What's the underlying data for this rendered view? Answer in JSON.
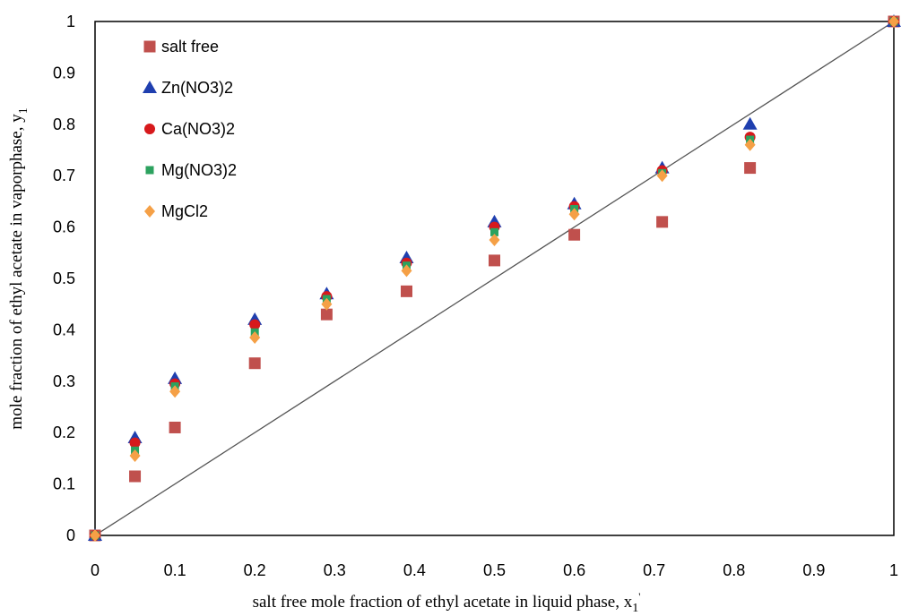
{
  "chart_data": {
    "type": "scatter",
    "title": "",
    "xlabel": "salt free mole fraction of ethyl acetate in liquid phase, x",
    "xlabel_sub": "1",
    "xlabel_sup": "'",
    "ylabel": "mole fraction of ethyl acetate in vaporphase, y",
    "ylabel_sub": "1",
    "xlim": [
      0,
      1
    ],
    "ylim": [
      0,
      1
    ],
    "x_ticks": [
      "0",
      "0.1",
      "0.2",
      "0.3",
      "0.4",
      "0.5",
      "0.6",
      "0.7",
      "0.8",
      "0.9",
      "1"
    ],
    "y_ticks": [
      "0",
      "0.1",
      "0.2",
      "0.3",
      "0.4",
      "0.5",
      "0.6",
      "0.7",
      "0.8",
      "0.9",
      "1"
    ],
    "grid": false,
    "legend_position": "top-left",
    "diagonal_line": {
      "x": [
        0,
        1
      ],
      "y": [
        0,
        1
      ],
      "color": "#555555"
    },
    "series": [
      {
        "name": "salt free",
        "marker": "square",
        "color": "#C0504D",
        "x": [
          0,
          0.05,
          0.1,
          0.2,
          0.29,
          0.39,
          0.5,
          0.6,
          0.71,
          0.82,
          1
        ],
        "y": [
          0,
          0.115,
          0.21,
          0.335,
          0.43,
          0.475,
          0.535,
          0.585,
          0.61,
          0.715,
          1
        ]
      },
      {
        "name": "Zn(NO3)2",
        "marker": "triangle",
        "color": "#1F3FAF",
        "x": [
          0,
          0.05,
          0.1,
          0.2,
          0.29,
          0.39,
          0.5,
          0.6,
          0.71,
          0.82,
          1
        ],
        "y": [
          0,
          0.19,
          0.305,
          0.42,
          0.47,
          0.54,
          0.61,
          0.645,
          0.715,
          0.8,
          1
        ]
      },
      {
        "name": "Ca(NO3)2",
        "marker": "circle",
        "color": "#D7191C",
        "x": [
          0,
          0.05,
          0.1,
          0.2,
          0.29,
          0.39,
          0.5,
          0.6,
          0.71,
          0.82,
          1
        ],
        "y": [
          0,
          0.18,
          0.295,
          0.41,
          0.465,
          0.53,
          0.6,
          0.64,
          0.71,
          0.775,
          1
        ]
      },
      {
        "name": "Mg(NO3)2",
        "marker": "small-square",
        "color": "#2CA25F",
        "x": [
          0,
          0.05,
          0.1,
          0.2,
          0.29,
          0.39,
          0.5,
          0.6,
          0.71,
          0.82,
          1
        ],
        "y": [
          0,
          0.165,
          0.29,
          0.395,
          0.46,
          0.525,
          0.59,
          0.635,
          0.705,
          0.77,
          1
        ]
      },
      {
        "name": "MgCl2",
        "marker": "diamond",
        "color": "#F5A046",
        "x": [
          0,
          0.05,
          0.1,
          0.2,
          0.29,
          0.39,
          0.5,
          0.6,
          0.71,
          0.82,
          1
        ],
        "y": [
          0,
          0.155,
          0.28,
          0.385,
          0.45,
          0.515,
          0.575,
          0.625,
          0.7,
          0.76,
          1
        ]
      }
    ]
  }
}
